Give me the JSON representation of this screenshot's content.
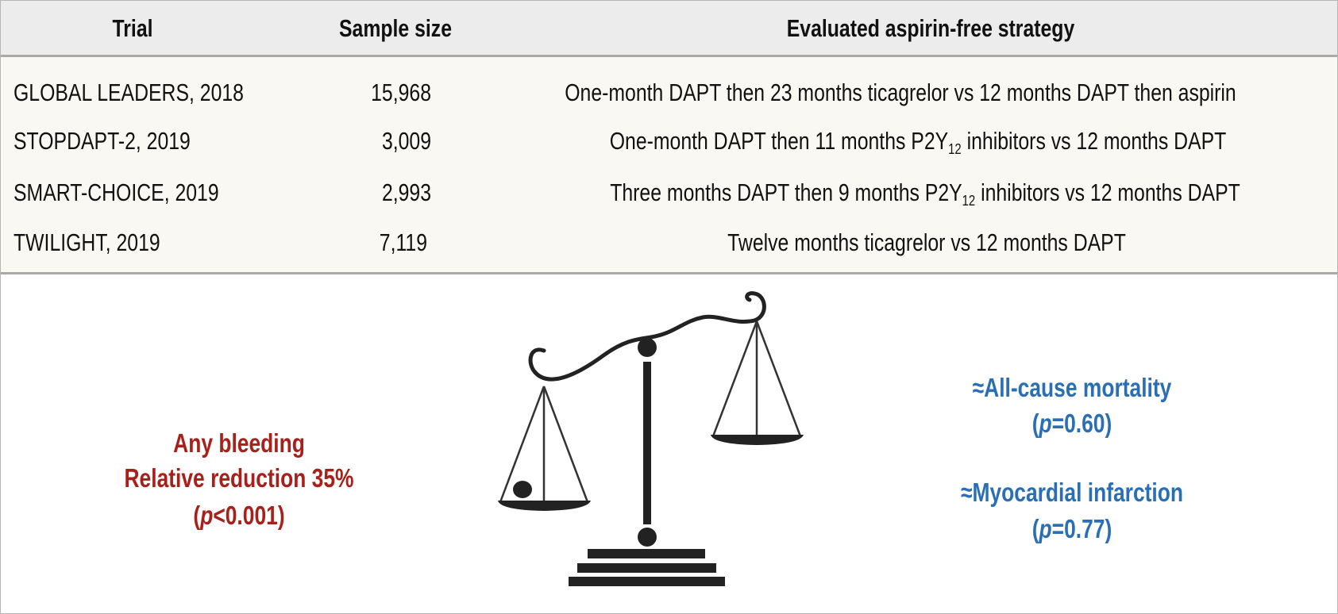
{
  "table": {
    "headers": {
      "trial": "Trial",
      "sample_size": "Sample size",
      "strategy": "Evaluated aspirin-free strategy"
    },
    "rows": [
      {
        "trial": "GLOBAL LEADERS, 2018",
        "sample_size": "15,968",
        "strategy": {
          "before": "One-month DAPT then 23 months ticagrelor vs 12 months DAPT then aspirin",
          "sub": "",
          "after": ""
        }
      },
      {
        "trial": "STOPDAPT-2, 2019",
        "sample_size": "3,009",
        "strategy": {
          "before": "One-month DAPT then 11 months P2Y",
          "sub": "12",
          "after": " inhibitors vs 12 months DAPT"
        }
      },
      {
        "trial": "SMART-CHOICE, 2019",
        "sample_size": "2,993",
        "strategy": {
          "before": "Three months DAPT then 9 months P2Y",
          "sub": "12",
          "after": " inhibitors vs 12 months DAPT"
        }
      },
      {
        "trial": "TWILIGHT, 2019",
        "sample_size": "7,119",
        "strategy": {
          "before": "Twelve months ticagrelor vs 12 months DAPT",
          "sub": "",
          "after": ""
        }
      }
    ]
  },
  "bleeding": {
    "line1": "Any bleeding",
    "line2": "Relative reduction 35%",
    "p_prefix": "(",
    "p_italic": "p",
    "p_rest": "<0.001)",
    "color": "#a8201a"
  },
  "outcomes": [
    {
      "label": "≈All-cause mortality",
      "p_prefix": "(",
      "p_italic": "p",
      "p_rest": "=0.60)"
    },
    {
      "label": "≈Myocardial infarction",
      "p_prefix": "(",
      "p_italic": "p",
      "p_rest": "=0.77)"
    }
  ],
  "outcome_color": "#2a6fb5",
  "icon": "balance-scale-icon"
}
